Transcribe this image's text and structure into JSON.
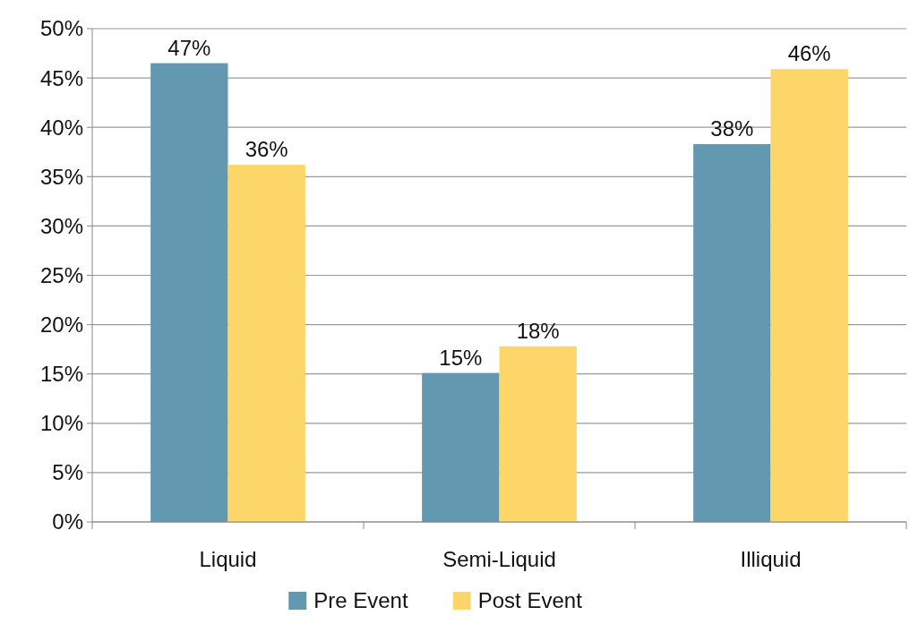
{
  "chart_data": {
    "type": "bar",
    "categories": [
      "Liquid",
      "Semi-Liquid",
      "Illiquid"
    ],
    "series": [
      {
        "name": "Pre Event",
        "color": "#6399b0",
        "values": [
          46.5,
          15.1,
          38.3
        ],
        "value_labels": [
          "47%",
          "15%",
          "38%"
        ]
      },
      {
        "name": "Post Event",
        "color": "#fdd66a",
        "values": [
          36.2,
          17.8,
          45.9
        ],
        "value_labels": [
          "36%",
          "18%",
          "46%"
        ]
      }
    ],
    "ylim": [
      0,
      50
    ],
    "yticks": [
      {
        "value": 0,
        "label": "0%"
      },
      {
        "value": 5,
        "label": "5%"
      },
      {
        "value": 10,
        "label": "10%"
      },
      {
        "value": 15,
        "label": "15%"
      },
      {
        "value": 20,
        "label": "20%"
      },
      {
        "value": 25,
        "label": "25%"
      },
      {
        "value": 30,
        "label": "30%"
      },
      {
        "value": 35,
        "label": "35%"
      },
      {
        "value": 40,
        "label": "40%"
      },
      {
        "value": 45,
        "label": "45%"
      },
      {
        "value": 50,
        "label": "50%"
      }
    ],
    "grid": "y",
    "legend": "bottom"
  }
}
